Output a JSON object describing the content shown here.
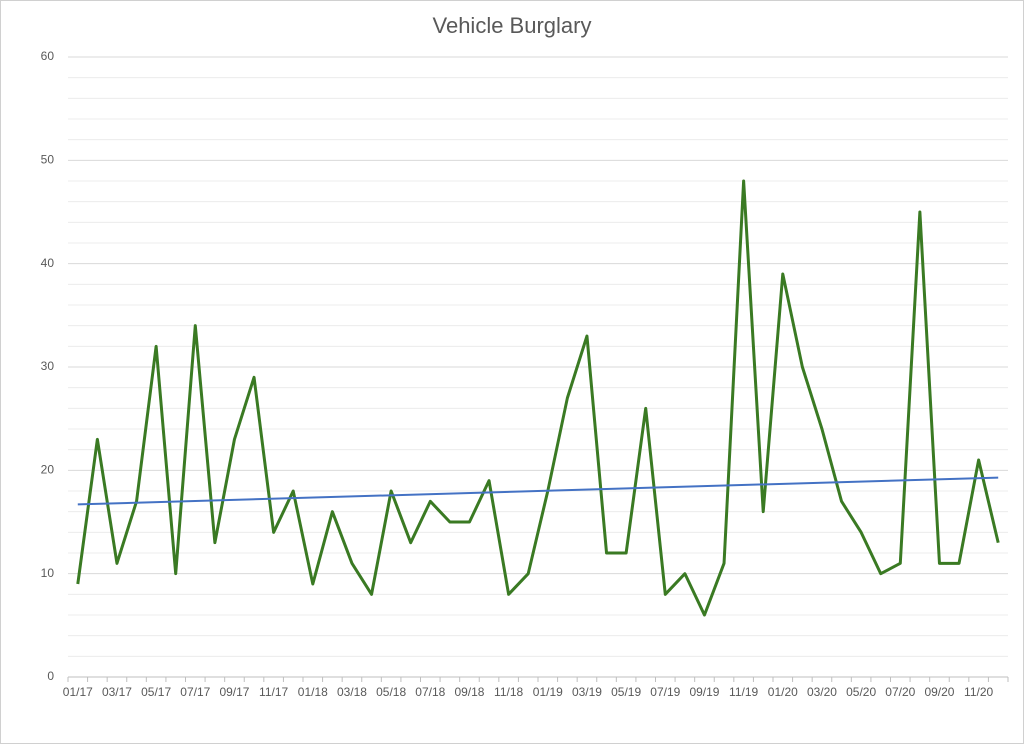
{
  "chart_data": {
    "type": "line",
    "title": "Vehicle Burglary",
    "categories": [
      "01/17",
      null,
      "03/17",
      null,
      "05/17",
      null,
      "07/17",
      null,
      "09/17",
      null,
      "11/17",
      null,
      "01/18",
      null,
      "03/18",
      null,
      "05/18",
      null,
      "07/18",
      null,
      "09/18",
      null,
      "11/18",
      null,
      "01/19",
      null,
      "03/19",
      null,
      "05/19",
      null,
      "07/19",
      null,
      "09/19",
      null,
      "11/19",
      null,
      "01/20",
      null,
      "03/20",
      null,
      "05/20",
      null,
      "07/20",
      null,
      "09/20",
      null,
      "11/20",
      null
    ],
    "series": [
      {
        "color": "#3a7a23",
        "values": [
          9,
          23,
          11,
          17,
          32,
          10,
          34,
          13,
          23,
          29,
          14,
          18,
          9,
          16,
          11,
          8,
          18,
          13,
          17,
          15,
          15,
          19,
          8,
          10,
          18,
          27,
          33,
          12,
          12,
          26,
          8,
          10,
          6,
          11,
          48,
          16,
          39,
          30,
          24,
          17,
          14,
          10,
          11,
          45,
          11,
          11,
          21,
          13
        ]
      }
    ],
    "trendline": {
      "color": "#4472c4",
      "start": 16.7,
      "end": 19.3
    },
    "ylim": [
      0,
      60
    ],
    "yticks": [
      0,
      10,
      20,
      30,
      40,
      50,
      60
    ],
    "yminorticks": [
      2,
      4,
      6,
      8,
      12,
      14,
      16,
      18,
      22,
      24,
      26,
      28,
      32,
      34,
      36,
      38,
      42,
      44,
      46,
      48,
      52,
      54,
      56,
      58
    ],
    "grid": true
  }
}
